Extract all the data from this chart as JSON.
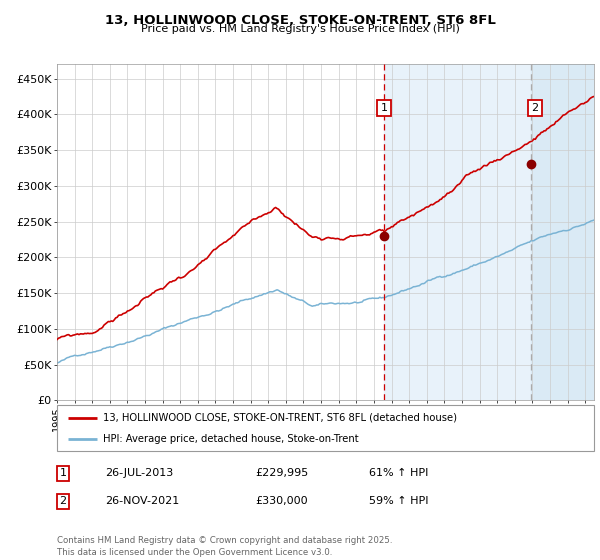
{
  "title": "13, HOLLINWOOD CLOSE, STOKE-ON-TRENT, ST6 8FL",
  "subtitle": "Price paid vs. HM Land Registry's House Price Index (HPI)",
  "hpi_color": "#7ab3d4",
  "price_color": "#cc0000",
  "bg_color": "#ffffff",
  "plot_bg_color": "#ffffff",
  "shade_color_light": "#e8f2fa",
  "shade_color_strong": "#daeaf5",
  "grid_color": "#cccccc",
  "ylim": [
    0,
    470000
  ],
  "yticks": [
    0,
    50000,
    100000,
    150000,
    200000,
    250000,
    300000,
    350000,
    400000,
    450000
  ],
  "purchase1": {
    "date_num": 2013.57,
    "price": 229995,
    "label": "1",
    "date_str": "26-JUL-2013"
  },
  "purchase2": {
    "date_num": 2021.9,
    "price": 330000,
    "label": "2",
    "date_str": "26-NOV-2021"
  },
  "legend_entries": [
    {
      "label": "13, HOLLINWOOD CLOSE, STOKE-ON-TRENT, ST6 8FL (detached house)",
      "color": "#cc0000"
    },
    {
      "label": "HPI: Average price, detached house, Stoke-on-Trent",
      "color": "#7ab3d4"
    }
  ],
  "table_rows": [
    {
      "num": "1",
      "date": "26-JUL-2013",
      "price": "£229,995",
      "hpi": "61% ↑ HPI"
    },
    {
      "num": "2",
      "date": "26-NOV-2021",
      "price": "£330,000",
      "hpi": "59% ↑ HPI"
    }
  ],
  "footer": "Contains HM Land Registry data © Crown copyright and database right 2025.\nThis data is licensed under the Open Government Licence v3.0.",
  "xmin": 1995.0,
  "xmax": 2025.5
}
